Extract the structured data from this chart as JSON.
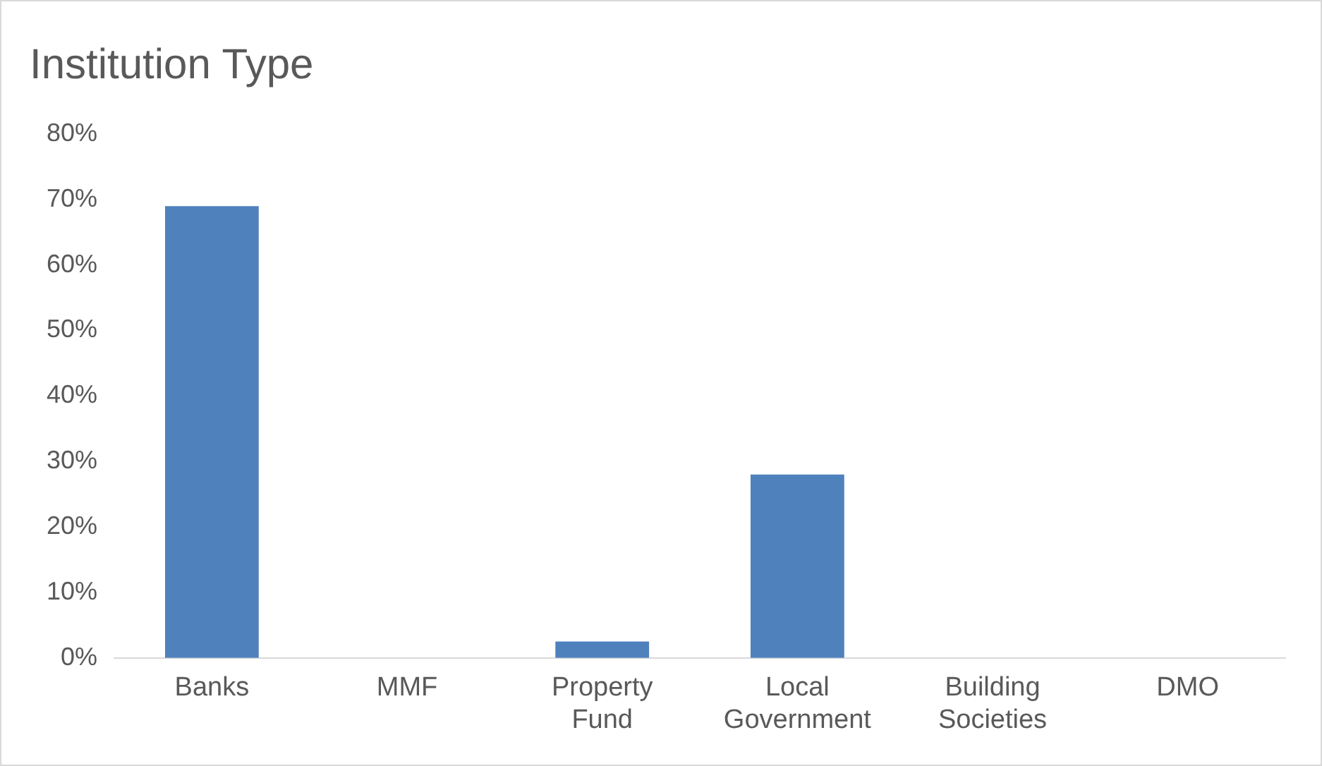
{
  "chart_data": {
    "type": "bar",
    "title": "Institution Type",
    "categories": [
      "Banks",
      "MMF",
      "Property Fund",
      "Local Government",
      "Building Societies",
      "DMO"
    ],
    "values": [
      69,
      0,
      2.5,
      28,
      0,
      0
    ],
    "color": "#4f81bd",
    "ylim": [
      0,
      80
    ],
    "yticks": [
      {
        "value": 0,
        "label": "0%"
      },
      {
        "value": 10,
        "label": "10%"
      },
      {
        "value": 20,
        "label": "20%"
      },
      {
        "value": 30,
        "label": "30%"
      },
      {
        "value": 40,
        "label": "40%"
      },
      {
        "value": 50,
        "label": "50%"
      },
      {
        "value": 60,
        "label": "60%"
      },
      {
        "value": 70,
        "label": "70%"
      },
      {
        "value": 80,
        "label": "80%"
      }
    ],
    "grid": false,
    "legend": false
  }
}
